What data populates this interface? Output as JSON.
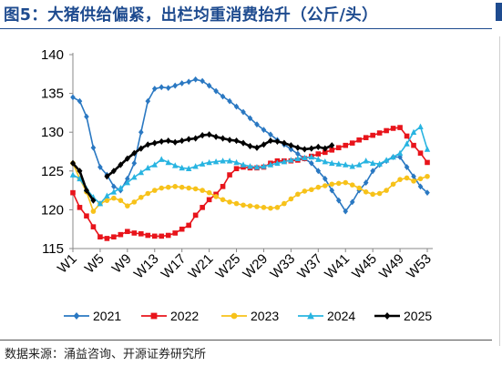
{
  "title": "图5：大猪供给偏紧，出栏均重消费抬升（公斤/头）",
  "source": "数据来源：涌益咨询、开源证券研究所",
  "chart_data": {
    "type": "line",
    "ylim": [
      115,
      140
    ],
    "yticks": [
      "115",
      "120",
      "125",
      "130",
      "135",
      "140"
    ],
    "xticks": [
      "W1",
      "W5",
      "W9",
      "W13",
      "W17",
      "W21",
      "W25",
      "W29",
      "W33",
      "W37",
      "W41",
      "W45",
      "W49",
      "W53"
    ],
    "series": [
      {
        "name": "2021",
        "color": "#2a78c2",
        "marker": "diamond",
        "values": [
          134.5,
          134.0,
          132.0,
          128.0,
          125.5,
          124.5,
          123.0,
          122.5,
          124.0,
          126.0,
          130.0,
          134.0,
          135.6,
          135.8,
          135.7,
          136.0,
          136.3,
          136.5,
          136.8,
          136.6,
          136.0,
          135.3,
          134.6,
          134.0,
          133.3,
          132.6,
          131.8,
          131.0,
          130.3,
          129.7,
          129.0,
          128.4,
          127.8,
          127.2,
          126.6,
          126.0,
          125.0,
          124.0,
          122.5,
          121.2,
          119.8,
          121.0,
          122.5,
          123.5,
          125.0,
          125.8,
          126.3,
          126.8,
          126.8,
          125.5,
          124.3,
          123.0,
          122.2
        ]
      },
      {
        "name": "2022",
        "color": "#e8141b",
        "marker": "square",
        "values": [
          122.2,
          120.3,
          119.2,
          117.8,
          116.5,
          116.3,
          116.5,
          116.8,
          117.2,
          117.0,
          116.9,
          116.7,
          116.6,
          116.6,
          116.7,
          117.0,
          117.5,
          118.0,
          119.3,
          120.3,
          121.3,
          122.0,
          123.0,
          124.5,
          125.3,
          125.5,
          125.4,
          125.4,
          125.5,
          126.0,
          126.3,
          126.3,
          126.3,
          126.4,
          126.6,
          126.9,
          127.2,
          127.4,
          127.7,
          128.0,
          128.3,
          128.6,
          129.0,
          129.3,
          129.6,
          129.9,
          130.2,
          130.5,
          130.6,
          129.5,
          128.3,
          127.3,
          126.1
        ]
      },
      {
        "name": "2023",
        "color": "#f7c21a",
        "marker": "circle",
        "values": [
          126.0,
          124.0,
          122.3,
          119.8,
          120.8,
          121.2,
          121.5,
          121.2,
          120.5,
          121.0,
          121.6,
          122.1,
          122.5,
          122.8,
          122.9,
          123.0,
          122.9,
          122.8,
          122.7,
          122.5,
          122.2,
          121.7,
          121.3,
          121.0,
          120.8,
          120.6,
          120.5,
          120.4,
          120.3,
          120.2,
          120.3,
          120.8,
          121.4,
          122.0,
          122.4,
          122.6,
          122.9,
          123.1,
          123.3,
          123.4,
          123.5,
          123.2,
          122.8,
          122.3,
          122.0,
          122.1,
          122.5,
          123.3,
          123.9,
          124.1,
          123.7,
          124.0,
          124.3
        ]
      },
      {
        "name": "2024",
        "color": "#28b4e1",
        "marker": "triangle",
        "values": [
          124.5,
          124.0,
          122.7,
          121.6,
          120.8,
          121.8,
          122.3,
          122.8,
          123.5,
          124.2,
          124.8,
          125.4,
          125.8,
          126.5,
          126.1,
          125.7,
          125.4,
          125.3,
          125.6,
          125.9,
          126.1,
          126.2,
          126.3,
          126.3,
          126.1,
          125.8,
          125.6,
          125.5,
          125.6,
          125.8,
          126.0,
          126.2,
          126.4,
          126.6,
          126.7,
          126.8,
          126.5,
          126.2,
          126.0,
          125.9,
          125.8,
          125.6,
          125.8,
          126.3,
          126.0,
          125.9,
          126.4,
          126.8,
          127.3,
          128.5,
          130.0,
          130.7,
          127.8
        ]
      },
      {
        "name": "2025",
        "color": "#000000",
        "marker": "diamond",
        "values": [
          126.0,
          125.0,
          122.5,
          121.2,
          null,
          124.3,
          125.0,
          125.8,
          126.6,
          127.3,
          127.9,
          128.4,
          128.6,
          128.8,
          128.9,
          128.7,
          128.9,
          129.1,
          129.2,
          129.6,
          129.7,
          129.4,
          129.2,
          129.0,
          128.9,
          128.6,
          128.2,
          128.0,
          128.4,
          128.9,
          128.8,
          128.6,
          128.3,
          128.0,
          127.8,
          127.9,
          128.1,
          127.9,
          128.3
        ]
      }
    ]
  }
}
